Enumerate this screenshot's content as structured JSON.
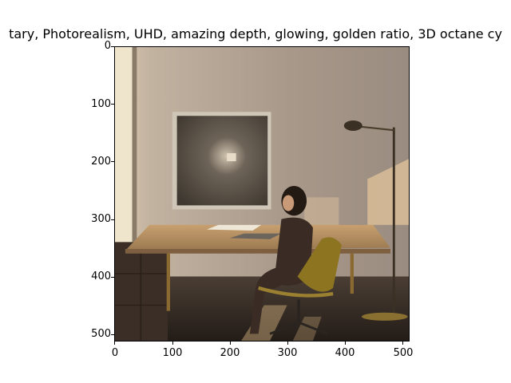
{
  "figure": {
    "title": "tary,  Photorealism, UHD, amazing depth, glowing, golden ratio, 3D octane cy"
  },
  "image_description_alt": "",
  "axes": {
    "x_ticks": [
      "0",
      "100",
      "200",
      "300",
      "400",
      "500"
    ],
    "y_ticks": [
      "0",
      "100",
      "200",
      "300",
      "400",
      "500"
    ],
    "x_range": [
      0,
      512
    ],
    "y_range": [
      512,
      0
    ]
  },
  "colors": {
    "wall": "#a99a8c",
    "floor": "#2c2520",
    "desk": "#b89064",
    "chair": "#8c7420"
  }
}
